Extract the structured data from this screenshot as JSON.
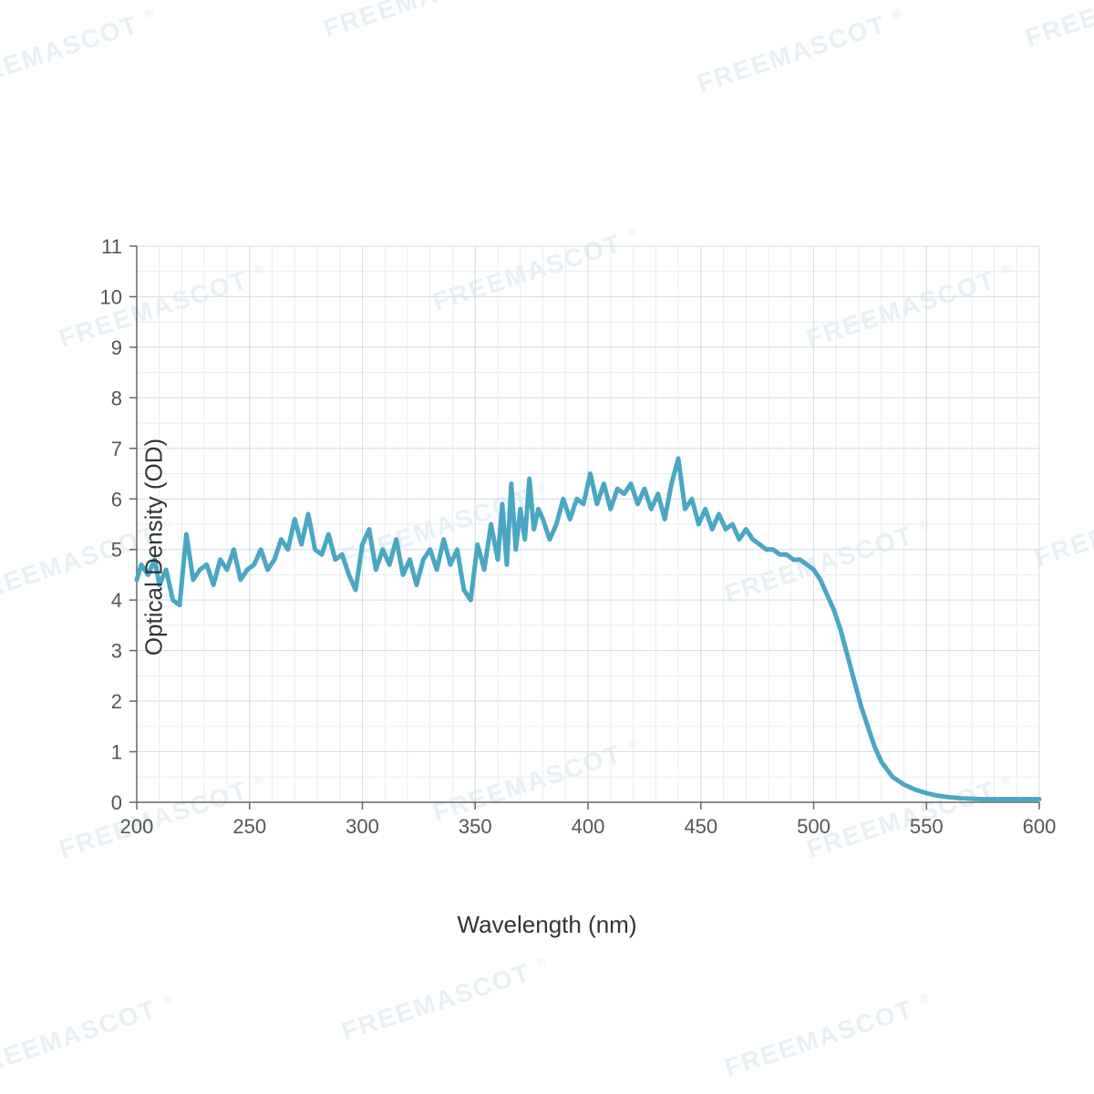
{
  "chart": {
    "type": "line",
    "xlabel": "Wavelength (nm)",
    "ylabel": "Optical Density (OD)",
    "xlabel_fontsize": 26,
    "ylabel_fontsize": 26,
    "tick_fontsize": 22,
    "xlim": [
      200,
      600
    ],
    "ylim": [
      0,
      11
    ],
    "xtick_step": 50,
    "ytick_step": 1,
    "x_minor_step": 10,
    "y_minor_step": 0.5,
    "background_color": "#ffffff",
    "grid_minor_color": "#e8eef1",
    "grid_major_color": "#d6dee3",
    "axis_color": "#666666",
    "line_color": "#4aa7c4",
    "line_width": 5,
    "series": {
      "x": [
        200,
        202,
        205,
        208,
        210,
        213,
        216,
        219,
        222,
        225,
        228,
        231,
        234,
        237,
        240,
        243,
        246,
        249,
        252,
        255,
        258,
        261,
        264,
        267,
        270,
        273,
        276,
        279,
        282,
        285,
        288,
        291,
        294,
        297,
        300,
        303,
        306,
        309,
        312,
        315,
        318,
        321,
        324,
        327,
        330,
        333,
        336,
        339,
        342,
        345,
        348,
        351,
        354,
        357,
        360,
        362,
        364,
        366,
        368,
        370,
        372,
        374,
        376,
        378,
        380,
        383,
        386,
        389,
        392,
        395,
        398,
        401,
        404,
        407,
        410,
        413,
        416,
        419,
        422,
        425,
        428,
        431,
        434,
        437,
        440,
        443,
        446,
        449,
        452,
        455,
        458,
        461,
        464,
        467,
        470,
        473,
        476,
        479,
        482,
        485,
        488,
        491,
        494,
        497,
        500,
        503,
        506,
        509,
        512,
        515,
        518,
        521,
        524,
        527,
        530,
        535,
        540,
        545,
        550,
        555,
        560,
        565,
        570,
        575,
        580,
        585,
        590,
        600
      ],
      "y": [
        4.4,
        4.7,
        4.5,
        4.8,
        4.3,
        4.6,
        4.0,
        3.9,
        5.3,
        4.4,
        4.6,
        4.7,
        4.3,
        4.8,
        4.6,
        5.0,
        4.4,
        4.6,
        4.7,
        5.0,
        4.6,
        4.8,
        5.2,
        5.0,
        5.6,
        5.1,
        5.7,
        5.0,
        4.9,
        5.3,
        4.8,
        4.9,
        4.5,
        4.2,
        5.1,
        5.4,
        4.6,
        5.0,
        4.7,
        5.2,
        4.5,
        4.8,
        4.3,
        4.8,
        5.0,
        4.6,
        5.2,
        4.7,
        5.0,
        4.2,
        4.0,
        5.1,
        4.6,
        5.5,
        4.8,
        5.9,
        4.7,
        6.3,
        5.0,
        5.8,
        5.2,
        6.4,
        5.4,
        5.8,
        5.6,
        5.2,
        5.5,
        6.0,
        5.6,
        6.0,
        5.9,
        6.5,
        5.9,
        6.3,
        5.8,
        6.2,
        6.1,
        6.3,
        5.9,
        6.2,
        5.8,
        6.1,
        5.6,
        6.3,
        6.8,
        5.8,
        6.0,
        5.5,
        5.8,
        5.4,
        5.7,
        5.4,
        5.5,
        5.2,
        5.4,
        5.2,
        5.1,
        5.0,
        5.0,
        4.9,
        4.9,
        4.8,
        4.8,
        4.7,
        4.6,
        4.4,
        4.1,
        3.8,
        3.4,
        2.9,
        2.4,
        1.9,
        1.5,
        1.1,
        0.8,
        0.5,
        0.35,
        0.25,
        0.18,
        0.13,
        0.1,
        0.08,
        0.07,
        0.06,
        0.06,
        0.06,
        0.06,
        0.06
      ]
    }
  },
  "watermark": {
    "text": "FREEMASCOT",
    "color": "#d8e8ef",
    "count": 12
  }
}
